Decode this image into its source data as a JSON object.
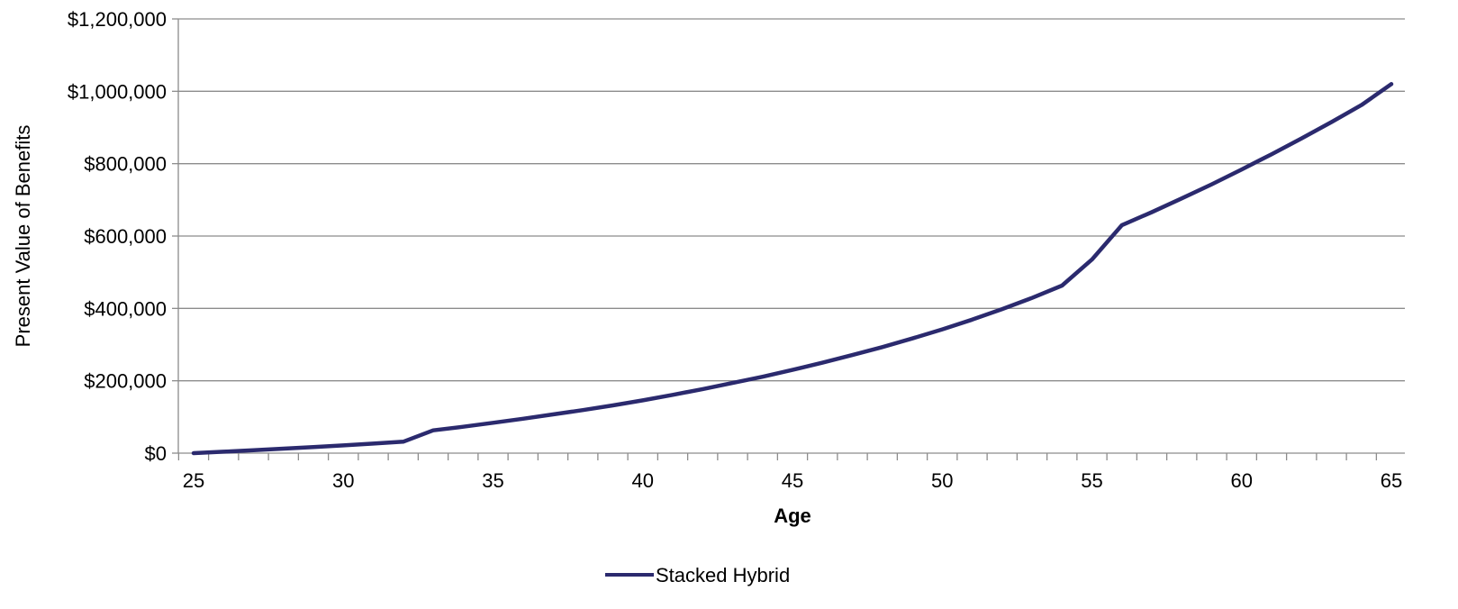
{
  "chart_data": {
    "type": "line",
    "title": "",
    "xlabel": "Age",
    "ylabel": "Present Value of Benefits",
    "xlim": [
      25,
      65
    ],
    "ylim": [
      0,
      1200000
    ],
    "x_ticks": [
      25,
      30,
      35,
      40,
      45,
      50,
      55,
      60,
      65
    ],
    "y_ticks": [
      0,
      200000,
      400000,
      600000,
      800000,
      1000000,
      1200000
    ],
    "y_tick_labels": [
      "$0",
      "$200,000",
      "$400,000",
      "$600,000",
      "$800,000",
      "$1,000,000",
      "$1,200,000"
    ],
    "grid": "horizontal",
    "legend_position": "bottom-center",
    "colors": {
      "series": "#2b2a6e",
      "grid": "#8c8c8c",
      "axis": "#8c8c8c"
    },
    "x": [
      25,
      26,
      27,
      28,
      29,
      30,
      31,
      32,
      33,
      34,
      35,
      36,
      37,
      38,
      39,
      40,
      41,
      42,
      43,
      44,
      45,
      46,
      47,
      48,
      49,
      50,
      51,
      52,
      53,
      54,
      55,
      56,
      57,
      58,
      59,
      60,
      61,
      62,
      63,
      64,
      65
    ],
    "series": [
      {
        "name": "Stacked Hybrid",
        "values": [
          0,
          4000,
          8000,
          12500,
          17000,
          21500,
          26500,
          31500,
          63000,
          73000,
          84000,
          95000,
          107000,
          119000,
          132000,
          146000,
          161000,
          177000,
          194000,
          211000,
          230000,
          250000,
          271000,
          293000,
          317000,
          342000,
          369000,
          398000,
          429000,
          463000,
          535000,
          630000,
          666000,
          704000,
          743000,
          784000,
          826000,
          870000,
          915000,
          962000,
          1020000
        ]
      }
    ]
  }
}
